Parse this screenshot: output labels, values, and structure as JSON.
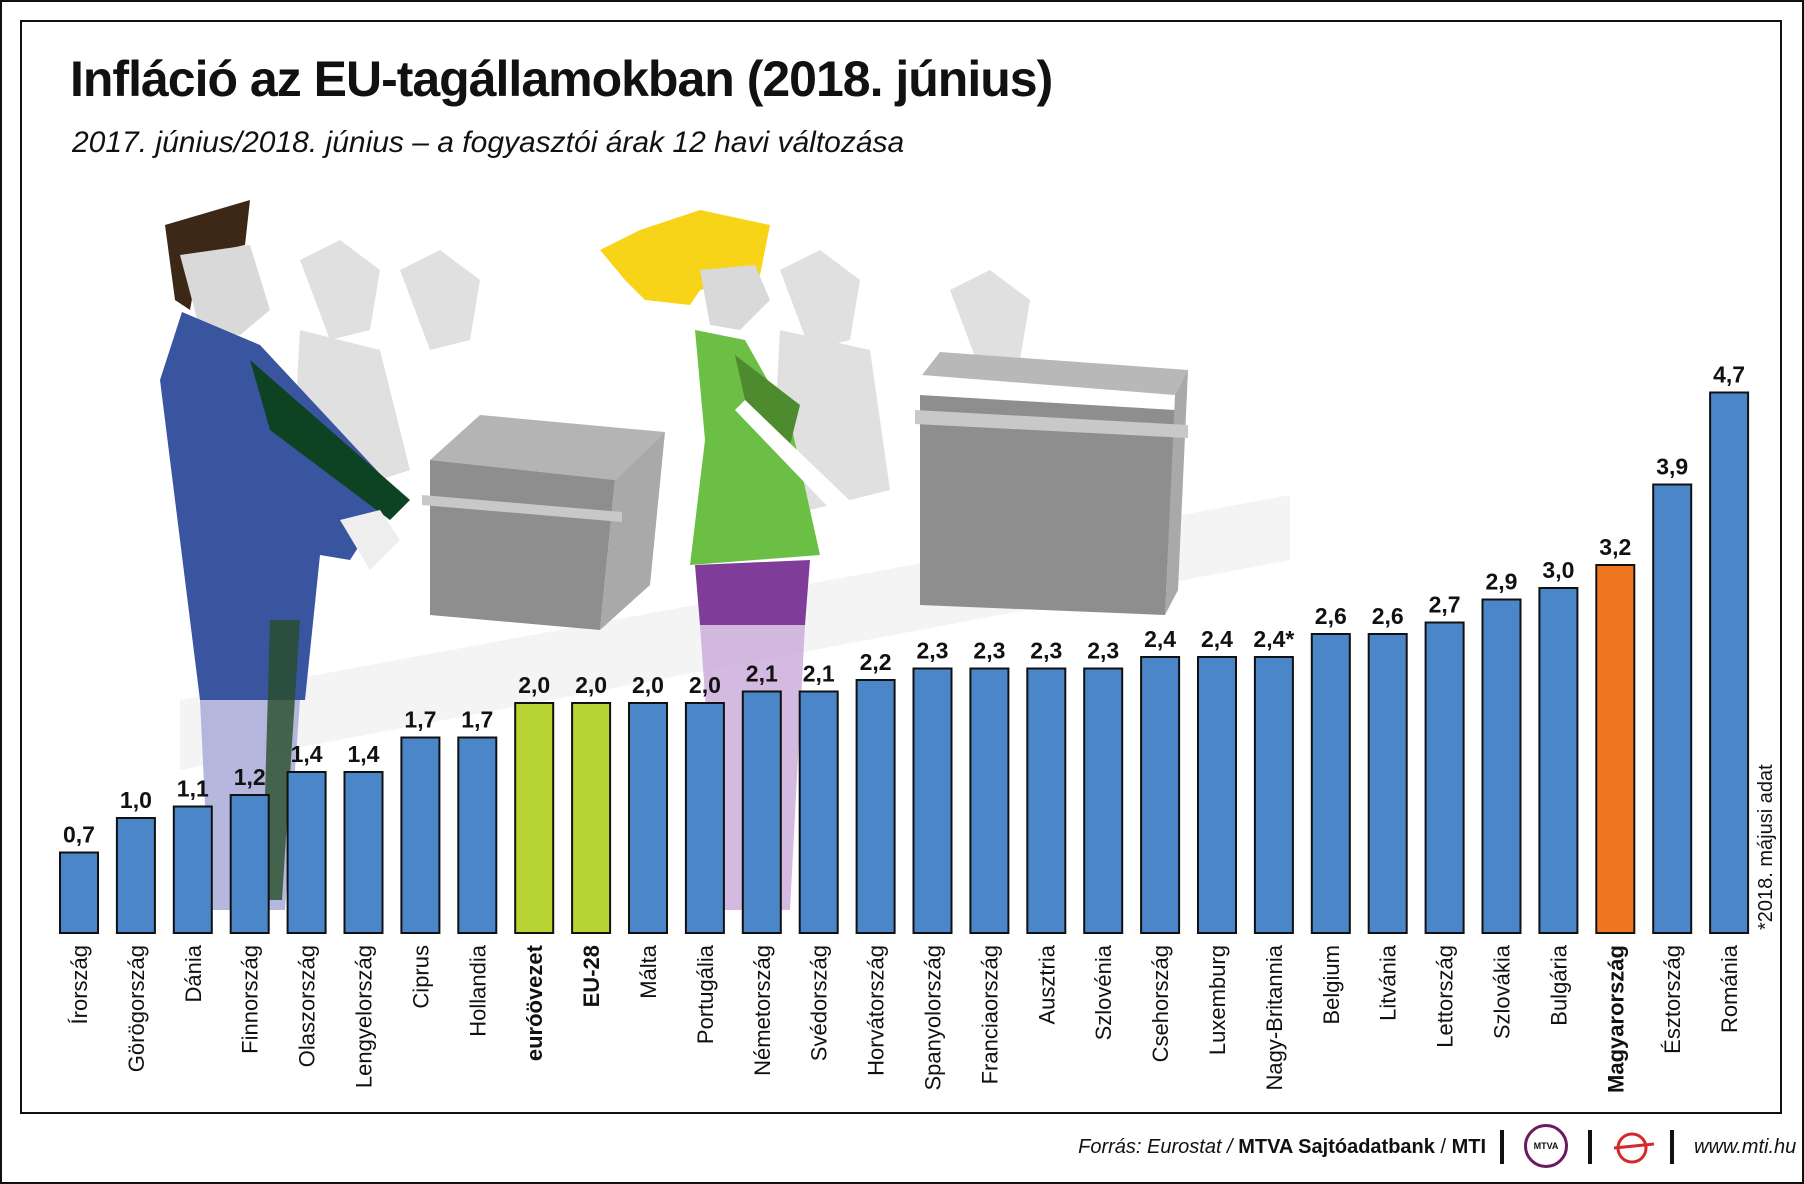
{
  "title": "Infláció az EU-tagállamokban (2018. június)",
  "subtitle": "2017. június/2018. június – a fogyasztói árak 12 havi változása",
  "footnote": "*2018. májusi adat",
  "footer": {
    "source_prefix": "Forrás: Eurostat / ",
    "source_org": "MTVA Sajtóadatbank",
    "source_sep": " / ",
    "source_agency": "MTI",
    "mtva_logo": "MTVA",
    "website": "www.mti.hu"
  },
  "colors": {
    "default": "#4a86c8",
    "euro": "#b8d432",
    "highlight": "#f07622",
    "illustration_gray": "#c9c9c9",
    "figure_blue": "#3a55a0",
    "figure_green": "#6cbf45",
    "figure_purple": "#7f3d99",
    "hair_yellow": "#f7d418",
    "hair_brown": "#3b2816"
  },
  "chart_data": {
    "type": "bar",
    "title": "Infláció az EU-tagállamokban (2018. június)",
    "subtitle": "2017. június/2018. június – a fogyasztói árak 12 havi változása",
    "xlabel": "",
    "ylabel": "",
    "ylim": [
      0,
      5
    ],
    "grid": false,
    "categories": [
      "Írország",
      "Görögország",
      "Dánia",
      "Finnország",
      "Olaszország",
      "Lengyelország",
      "Ciprus",
      "Hollandia",
      "euróövezet",
      "EU-28",
      "Málta",
      "Portugália",
      "Németország",
      "Svédország",
      "Horvátország",
      "Spanyolország",
      "Franciaország",
      "Ausztria",
      "Szlovénia",
      "Csehország",
      "Luxemburg",
      "Nagy-Britannia",
      "Belgium",
      "Litvánia",
      "Lettország",
      "Szlovákia",
      "Bulgária",
      "Magyarország",
      "Észtország",
      "Románia"
    ],
    "values": [
      0.7,
      1.0,
      1.1,
      1.2,
      1.4,
      1.4,
      1.7,
      1.7,
      2.0,
      2.0,
      2.0,
      2.0,
      2.1,
      2.1,
      2.2,
      2.3,
      2.3,
      2.3,
      2.3,
      2.4,
      2.4,
      2.4,
      2.6,
      2.6,
      2.7,
      2.9,
      3.0,
      3.2,
      3.9,
      4.7
    ],
    "value_labels": [
      "0,7",
      "1,0",
      "1,1",
      "1,2",
      "1,4",
      "1,4",
      "1,7",
      "1,7",
      "2,0",
      "2,0",
      "2,0",
      "2,0",
      "2,1",
      "2,1",
      "2,2",
      "2,3",
      "2,3",
      "2,3",
      "2,3",
      "2,4",
      "2,4",
      "2,4*",
      "2,6",
      "2,6",
      "2,7",
      "2,9",
      "3,0",
      "3,2",
      "3,9",
      "4,7"
    ],
    "bar_colors": [
      "default",
      "default",
      "default",
      "default",
      "default",
      "default",
      "default",
      "default",
      "euro",
      "euro",
      "default",
      "default",
      "default",
      "default",
      "default",
      "default",
      "default",
      "default",
      "default",
      "default",
      "default",
      "default",
      "default",
      "default",
      "default",
      "default",
      "default",
      "highlight",
      "default",
      "default"
    ],
    "bold_categories": [
      "euróövezet",
      "EU-28",
      "Magyarország"
    ]
  }
}
